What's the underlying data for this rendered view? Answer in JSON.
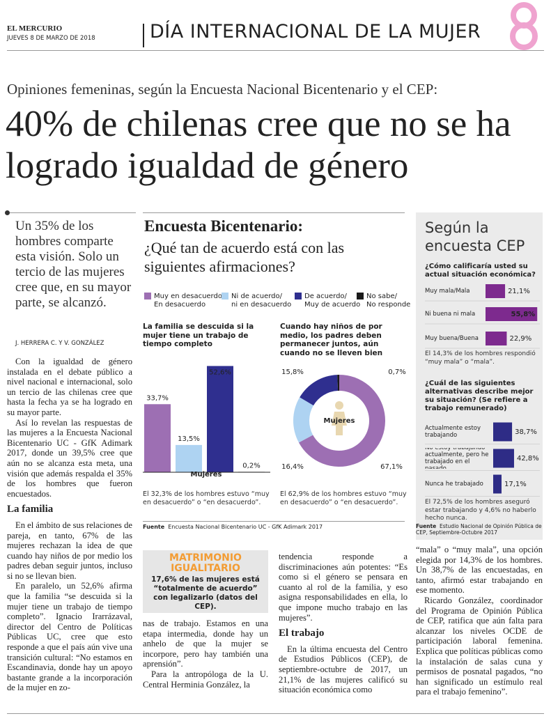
{
  "header": {
    "masthead": "EL MERCURIO",
    "date": "JUEVES 8 DE MARZO DE 2018",
    "section": "DÍA INTERNACIONAL DE LA MUJER"
  },
  "article": {
    "kicker": "Opiniones femeninas, según la Encuesta Nacional Bicentenario y el CEP:",
    "headline": "40% de chilenas cree que no se ha logrado igualdad de género",
    "deck": "Un 35% de los hombres comparte esta visión. Solo un tercio de las mujeres cree que, en su mayor parte, se alcanzó.",
    "byline": "J. HERRERA C. Y V. GONZÁLEZ",
    "subheads": [
      "La familia",
      "El trabajo"
    ],
    "body": [
      "Con la igualdad de género instalada en el debate público a nivel nacional e internacional, solo un tercio de las chilenas cree que hasta la fecha ya se ha logrado en su mayor parte.",
      "Así lo revelan las respuestas de las mujeres a la Encuesta Nacional Bicentenario UC - GfK Adimark 2017, donde un 39,5% cree que aún no se alcanza esta meta, una visión que además respalda el 35% de los hombres que fueron encuestados.",
      "En el ámbito de sus relaciones de pareja, en tanto, 67% de las mujeres rechazan la idea de que cuando hay niños de por medio los padres deban seguir juntos, incluso si no se llevan bien.",
      "En paralelo, un 52,6% afirma que la familia “se descuida si la mujer tiene un trabajo de tiempo completo”. Ignacio Irarrázaval, director del Centro de Políticas Públicas UC, cree que esto responde a que el país aún vive una transición cultural: “No estamos en Escandinavia, donde hay un apoyo bastante grande a la incorporación de la mujer en zo-",
      "nas de trabajo. Estamos en una etapa intermedia, donde hay un anhelo de que la mujer se incorpore, pero hay también una aprensión”.",
      "Para la antropóloga de la U. Central Herminia González, la",
      "tendencia responde a discriminaciones aún potentes: “Es como si el género se pensara en cuanto al rol de la familia, y eso asigna responsabilidades en ella, lo que impone mucho trabajo en las mujeres”.",
      "En la última encuesta del Centro de Estudios Públicos (CEP), de septiembre-octubre de 2017, un 21,1% de las mujeres calificó su situación económica como",
      "“mala” o “muy mala”, una opción elegida por 14,3% de los hombres. Un 38,7% de las encuestadas, en tanto, afirmó estar trabajando en ese momento.",
      "Ricardo González, coordinador del Programa de Opinión Pública de CEP, ratifica que aún falta para alcanzar los niveles OCDE de participación laboral femenina. Explica que políticas públicas como la instalación de salas cuna y permisos de posnatal pagados, “no han significado un estímulo real para el trabajo femenino”."
    ]
  },
  "box": {
    "title": "MATRIMONIO IGUALITARIO",
    "text": "17,6% de las mujeres está “totalmente de acuerdo” con legalizarlo (datos del CEP)."
  },
  "bicentenario": {
    "title": "Encuesta Bicentenario:",
    "subtitle": "¿Qué tan de acuerdo está con las siguientes afirmaciones?",
    "legend": [
      {
        "name": "Muy en desacuerdo/ En desacuerdo",
        "color": "#9d6fb3"
      },
      {
        "name": "Ni de acuerdo/ ni en desacuerdo",
        "color": "#aed3f2"
      },
      {
        "name": "De acuerdo/ Muy de acuerdo",
        "color": "#2f2f8f"
      },
      {
        "name": "No sabe/ No responde",
        "color": "#1a1a1a"
      }
    ],
    "bar_chart": {
      "type": "bar",
      "title": "La familia se descuida si la mujer tiene un trabajo de tiempo completo",
      "values": [
        33.7,
        13.5,
        52.6,
        0.2
      ],
      "value_labels": [
        "33,7%",
        "13,5%",
        "52,6%",
        "0,2%"
      ],
      "xlabel": "Mujeres",
      "note": "El 32,3% de los hombres estuvo “muy en desacuerdo” o “en desacuerdo”."
    },
    "donut_chart": {
      "type": "donut",
      "title": "Cuando hay niños de por medio, los padres deben permanecer juntos, aún cuando no se lleven bien",
      "values": [
        67.1,
        16.4,
        15.8,
        0.7
      ],
      "value_labels": [
        "67,1%",
        "16,4%",
        "15,8%",
        "0,7%"
      ],
      "center_label": "Mujeres",
      "note": "El 62,9% de los hombres estuvo “muy en desacuerdo” o “en desacuerdo”."
    },
    "source_label": "Fuente",
    "source": "Encuesta Nacional Bicentenario UC - GfK Adimark 2017"
  },
  "cep": {
    "title": "Según la encuesta CEP",
    "charts": [
      {
        "type": "hbar",
        "title": "¿Cómo calificaría usted su actual situación económica?",
        "color": "#7d2a8e",
        "categories": [
          "Muy mala/Mala",
          "Ni buena ni mala",
          "Muy buena/Buena"
        ],
        "values": [
          21.1,
          55.8,
          22.9
        ],
        "value_labels": [
          "21,1%",
          "55,8%",
          "22,9%"
        ],
        "note": "El 14,3% de los hombres respondió “muy mala” o “mala”."
      },
      {
        "type": "hbar",
        "title": "¿Cuál de las siguientes alternativas describe mejor su situación? (Se refiere a trabajo remunerado)",
        "color": "#2e2c86",
        "categories": [
          "Actualmente estoy trabajando",
          "No estoy trabajando actualmente, pero he trabajado en el pasado",
          "Nunca he trabajado"
        ],
        "values": [
          38.7,
          42.8,
          17.1
        ],
        "value_labels": [
          "38,7%",
          "42,8%",
          "17,1%"
        ],
        "note": "El 72,5% de los hombres aseguró estar trabajando y 4,6% no haberlo hecho nunca."
      }
    ],
    "source_label": "Fuente",
    "source": "Estudio Nacional de Opinión Pública de CEP, Septiembre-Octubre 2017"
  }
}
